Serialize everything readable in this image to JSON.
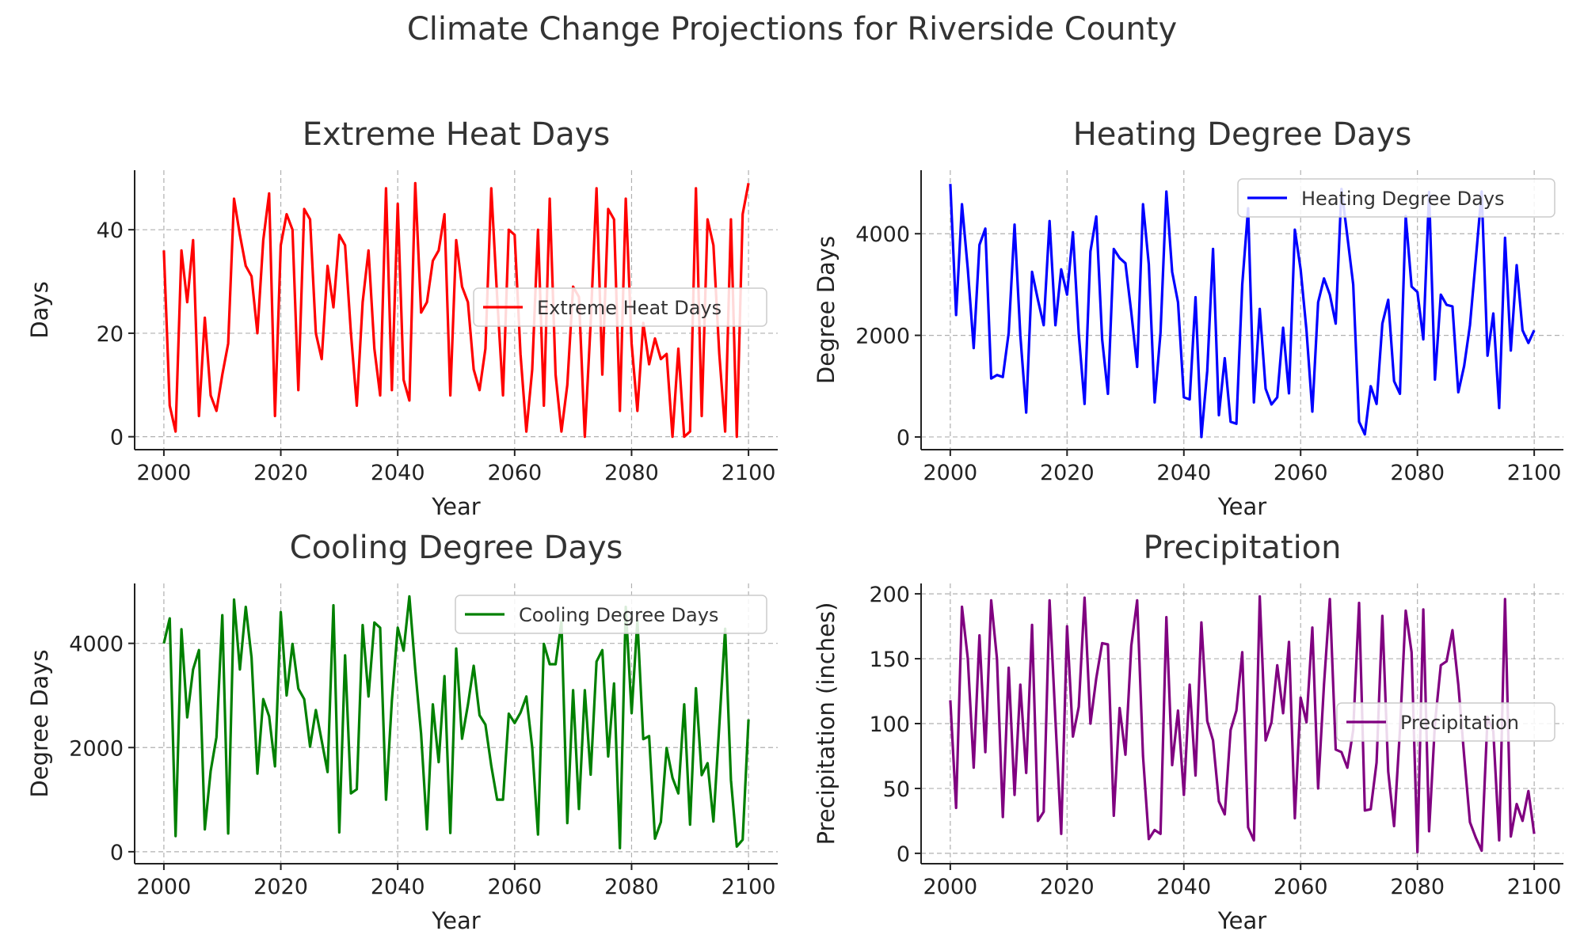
{
  "figure": {
    "title": "Climate Change Projections for Riverside County"
  },
  "chart_data": [
    {
      "type": "line",
      "title": "Extreme Heat Days",
      "xlabel": "Year",
      "ylabel": "Days",
      "xlim": [
        1995,
        2105
      ],
      "ylim": [
        -2.5,
        51.5
      ],
      "xticks": [
        2000,
        2020,
        2040,
        2060,
        2080,
        2100
      ],
      "yticks": [
        0,
        20,
        40
      ],
      "grid": true,
      "legend": "center-right",
      "x_start": 2000,
      "x_step": 1,
      "series": [
        {
          "name": "Extreme Heat Days",
          "color": "#ff0000",
          "values": [
            36,
            6,
            1,
            36,
            26,
            38,
            4,
            23,
            8,
            5,
            12,
            18,
            46,
            39,
            33,
            31,
            20,
            38,
            47,
            4,
            37,
            43,
            40,
            9,
            44,
            42,
            20,
            15,
            33,
            25,
            39,
            37,
            20,
            6,
            26,
            36,
            17,
            8,
            48,
            9,
            45,
            11,
            7,
            49,
            24,
            26,
            34,
            36,
            43,
            8,
            38,
            29,
            26,
            13,
            9,
            17,
            48,
            27,
            8,
            40,
            39,
            16,
            1,
            13,
            40,
            6,
            46,
            12,
            1,
            10,
            29,
            27,
            0,
            22,
            48,
            12,
            44,
            42,
            5,
            46,
            18,
            5,
            22,
            14,
            19,
            15,
            16,
            0,
            17,
            0,
            1,
            48,
            4,
            42,
            37,
            16,
            1,
            42,
            0,
            43,
            49
          ]
        }
      ]
    },
    {
      "type": "line",
      "title": "Heating Degree Days",
      "xlabel": "Year",
      "ylabel": "Degree Days",
      "xlim": [
        1995,
        2105
      ],
      "ylim": [
        -250,
        5250
      ],
      "xticks": [
        2000,
        2020,
        2040,
        2060,
        2080,
        2100
      ],
      "yticks": [
        0,
        2000,
        4000
      ],
      "grid": true,
      "legend": "top-right",
      "x_start": 2000,
      "x_step": 1,
      "series": [
        {
          "name": "Heating Degree Days",
          "color": "#0000ff",
          "values": [
            4980,
            2400,
            4580,
            3300,
            1750,
            3780,
            4100,
            1150,
            1220,
            1180,
            2050,
            4180,
            2000,
            480,
            3250,
            2700,
            2200,
            4250,
            2200,
            3300,
            2800,
            4030,
            2020,
            650,
            3650,
            4340,
            1920,
            850,
            3700,
            3520,
            3420,
            2450,
            1380,
            4580,
            3400,
            680,
            2050,
            4830,
            3250,
            2650,
            780,
            740,
            2750,
            0,
            1300,
            3700,
            430,
            1550,
            300,
            260,
            3000,
            4500,
            680,
            2520,
            950,
            640,
            780,
            2150,
            860,
            4080,
            3300,
            2100,
            500,
            2650,
            3120,
            2800,
            2230,
            4880,
            3950,
            3000,
            300,
            50,
            1000,
            650,
            2230,
            2700,
            1100,
            850,
            4350,
            2960,
            2850,
            1920,
            4820,
            1130,
            2800,
            2600,
            2570,
            880,
            1400,
            2200,
            3500,
            4830,
            1600,
            2430,
            570,
            3920,
            1700,
            3380,
            2100,
            1850,
            2100
          ]
        }
      ]
    },
    {
      "type": "line",
      "title": "Cooling Degree Days",
      "xlabel": "Year",
      "ylabel": "Degree Days",
      "xlim": [
        1995,
        2105
      ],
      "ylim": [
        -230,
        5150
      ],
      "xticks": [
        2000,
        2020,
        2040,
        2060,
        2080,
        2100
      ],
      "yticks": [
        0,
        2000,
        4000
      ],
      "grid": true,
      "legend": "top-right",
      "x_start": 2000,
      "x_step": 1,
      "series": [
        {
          "name": "Cooling Degree Days",
          "color": "#008000",
          "values": [
            4000,
            4480,
            300,
            4270,
            2580,
            3500,
            3870,
            430,
            1550,
            2200,
            4540,
            350,
            4840,
            3500,
            4700,
            3730,
            1500,
            2930,
            2600,
            1640,
            4600,
            3000,
            3990,
            3130,
            2930,
            2020,
            2720,
            2130,
            1530,
            4730,
            370,
            3770,
            1120,
            1200,
            4350,
            2980,
            4400,
            4300,
            1000,
            2900,
            4300,
            3860,
            4900,
            3500,
            2260,
            430,
            2830,
            1720,
            3370,
            360,
            3900,
            2170,
            2820,
            3570,
            2620,
            2440,
            1650,
            1000,
            1000,
            2650,
            2470,
            2670,
            2980,
            2000,
            330,
            3990,
            3600,
            3600,
            4420,
            550,
            3100,
            820,
            3100,
            1480,
            3650,
            3870,
            1830,
            3230,
            70,
            4700,
            2660,
            4440,
            2160,
            2220,
            250,
            570,
            1990,
            1420,
            1120,
            2830,
            520,
            3140,
            1470,
            1700,
            580,
            2420,
            4280,
            1380,
            100,
            230,
            2540
          ]
        }
      ]
    },
    {
      "type": "line",
      "title": "Precipitation",
      "xlabel": "Year",
      "ylabel": "Precipitation (inches)",
      "xlim": [
        1995,
        2105
      ],
      "ylim": [
        -8,
        208
      ],
      "xticks": [
        2000,
        2020,
        2040,
        2060,
        2080,
        2100
      ],
      "yticks": [
        0,
        50,
        100,
        150,
        200
      ],
      "grid": true,
      "legend": "center-right",
      "x_start": 2000,
      "x_step": 1,
      "series": [
        {
          "name": "Precipitation",
          "color": "#800080",
          "values": [
            118,
            35,
            190,
            150,
            66,
            168,
            78,
            195,
            150,
            28,
            143,
            45,
            130,
            62,
            176,
            25,
            32,
            195,
            103,
            15,
            175,
            90,
            113,
            197,
            100,
            135,
            162,
            161,
            29,
            112,
            76,
            160,
            195,
            75,
            11,
            18,
            15,
            182,
            68,
            110,
            45,
            130,
            60,
            178,
            102,
            87,
            40,
            30,
            95,
            110,
            155,
            20,
            10,
            198,
            87,
            101,
            145,
            108,
            163,
            27,
            120,
            101,
            174,
            50,
            130,
            196,
            80,
            78,
            66,
            95,
            193,
            33,
            34,
            70,
            183,
            63,
            21,
            95,
            187,
            155,
            1,
            188,
            17,
            100,
            145,
            148,
            172,
            130,
            75,
            24,
            12,
            2,
            105,
            94,
            10,
            196,
            13,
            38,
            25,
            48,
            15
          ]
        }
      ]
    }
  ]
}
